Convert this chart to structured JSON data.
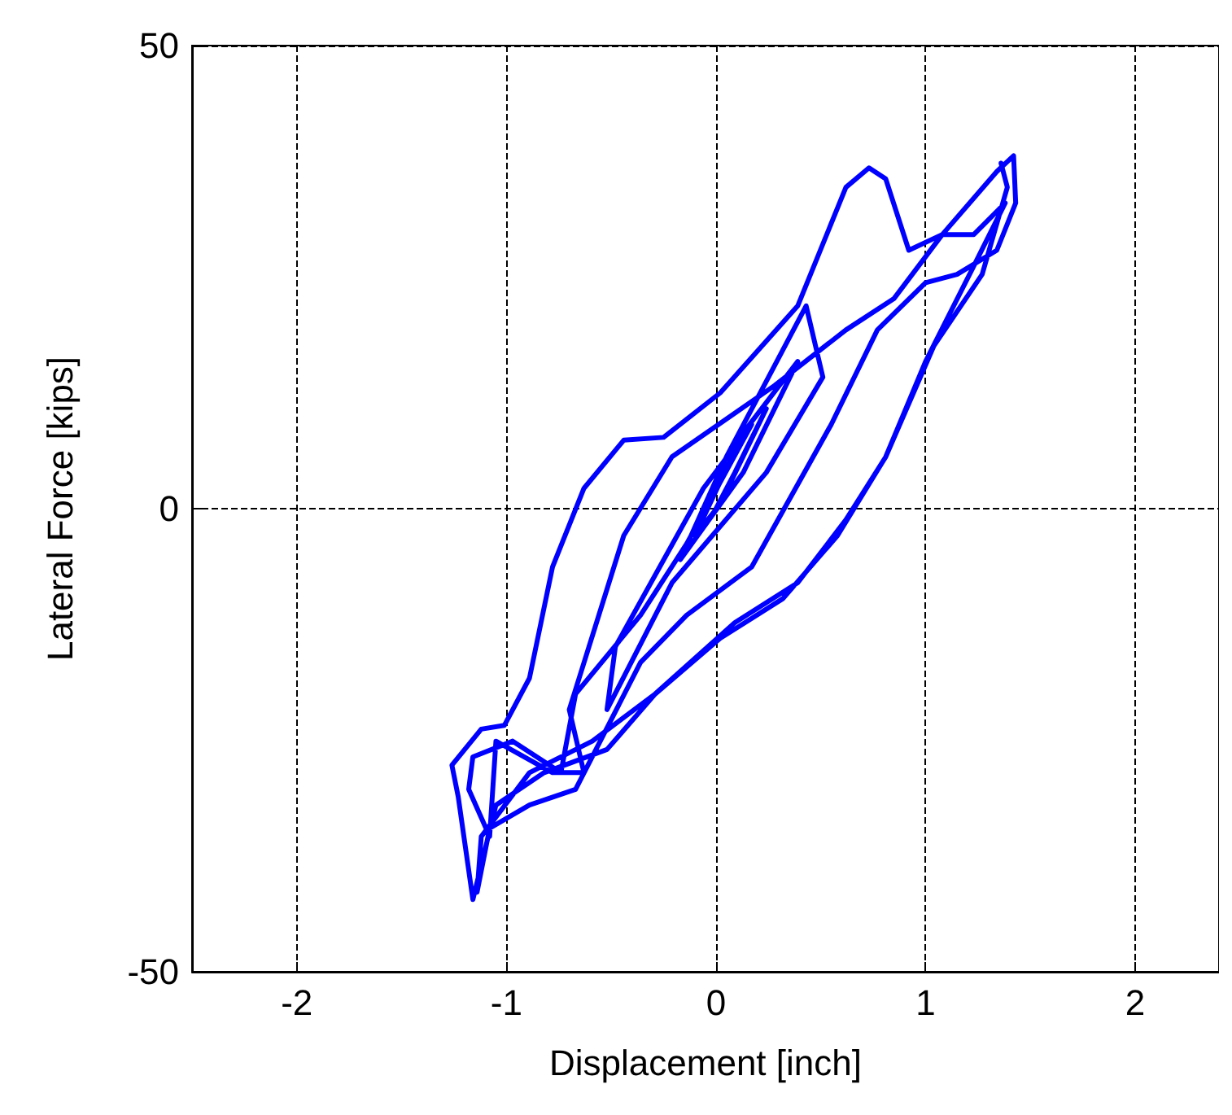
{
  "chart_data": {
    "type": "line",
    "xlabel": "Displacement [inch]",
    "ylabel": "Lateral Force [kips]",
    "xlim": [
      -2.5,
      2.4
    ],
    "ylim": [
      -50,
      50
    ],
    "xticks": [
      -2,
      -1,
      0,
      1,
      2
    ],
    "yticks": [
      -50,
      0,
      50
    ],
    "grid": true,
    "marker": "none",
    "line_style": "solid",
    "series": [
      {
        "color": "#0000ff",
        "x": [
          0,
          0.09,
          0.24,
          0.02,
          -0.1,
          0.13,
          0.39,
          0.13,
          -0.17,
          0.05,
          0.43,
          0.51,
          0.24,
          -0.21,
          -0.52,
          -0.48,
          -0.06,
          0.17,
          -0.14,
          -0.36,
          -0.67,
          -0.74,
          -0.97,
          -1.16,
          -1.18,
          -1.08,
          -1.05,
          -0.78,
          -0.63,
          -0.7,
          -0.44,
          -0.21,
          0.28,
          0.62,
          0.85,
          1.08,
          1.34,
          1.42,
          1.43,
          1.34,
          1.15,
          1.0,
          0.77,
          0.55,
          0.17,
          -0.14,
          -0.36,
          -0.67,
          -0.89,
          -1.08,
          -1.14,
          -1.12,
          -0.89,
          -0.59,
          -0.29,
          0.09,
          0.39,
          0.62,
          0.81,
          1.0,
          1.23,
          1.38,
          1.23,
          1.08,
          0.92,
          0.81,
          0.73,
          0.62,
          0.39,
          0.02,
          -0.25,
          -0.44,
          -0.63,
          -0.78,
          -0.89,
          -1.01,
          -1.12,
          -1.26,
          -1.23,
          -1.16,
          -1.05,
          -0.82,
          -0.52,
          -0.29,
          0.02,
          0.32,
          0.58,
          0.81,
          1.04,
          1.27,
          1.39,
          1.36
        ],
        "values": [
          0,
          3.9,
          10.8,
          0.5,
          -2.9,
          8.2,
          15.9,
          3.9,
          -5.5,
          5.6,
          21.9,
          14.2,
          3.9,
          -8.0,
          -21.7,
          -14.9,
          2.2,
          9.1,
          -3.8,
          -11.5,
          -20.0,
          -28.5,
          -25.1,
          -26.8,
          -30.3,
          -35.4,
          -25.1,
          -28.5,
          -28.5,
          -21.7,
          -2.9,
          5.6,
          13.3,
          19.3,
          22.7,
          29.6,
          36.4,
          38.1,
          33.0,
          27.9,
          25.3,
          24.4,
          19.3,
          9.1,
          -6.3,
          -11.5,
          -16.6,
          -30.3,
          -32.0,
          -34.5,
          -41.4,
          -35.4,
          -28.5,
          -25.1,
          -20.0,
          -12.3,
          -8.0,
          -1.2,
          5.6,
          15.9,
          26.2,
          33.0,
          29.6,
          29.6,
          27.9,
          35.6,
          36.8,
          34.7,
          21.9,
          12.5,
          7.7,
          7.4,
          2.2,
          -6.3,
          -18.3,
          -23.4,
          -23.8,
          -27.7,
          -31.1,
          -42.2,
          -32.0,
          -28.5,
          -26.0,
          -20.0,
          -14.0,
          -9.7,
          -2.9,
          5.6,
          17.6,
          25.3,
          34.7,
          37.3
        ]
      }
    ]
  }
}
